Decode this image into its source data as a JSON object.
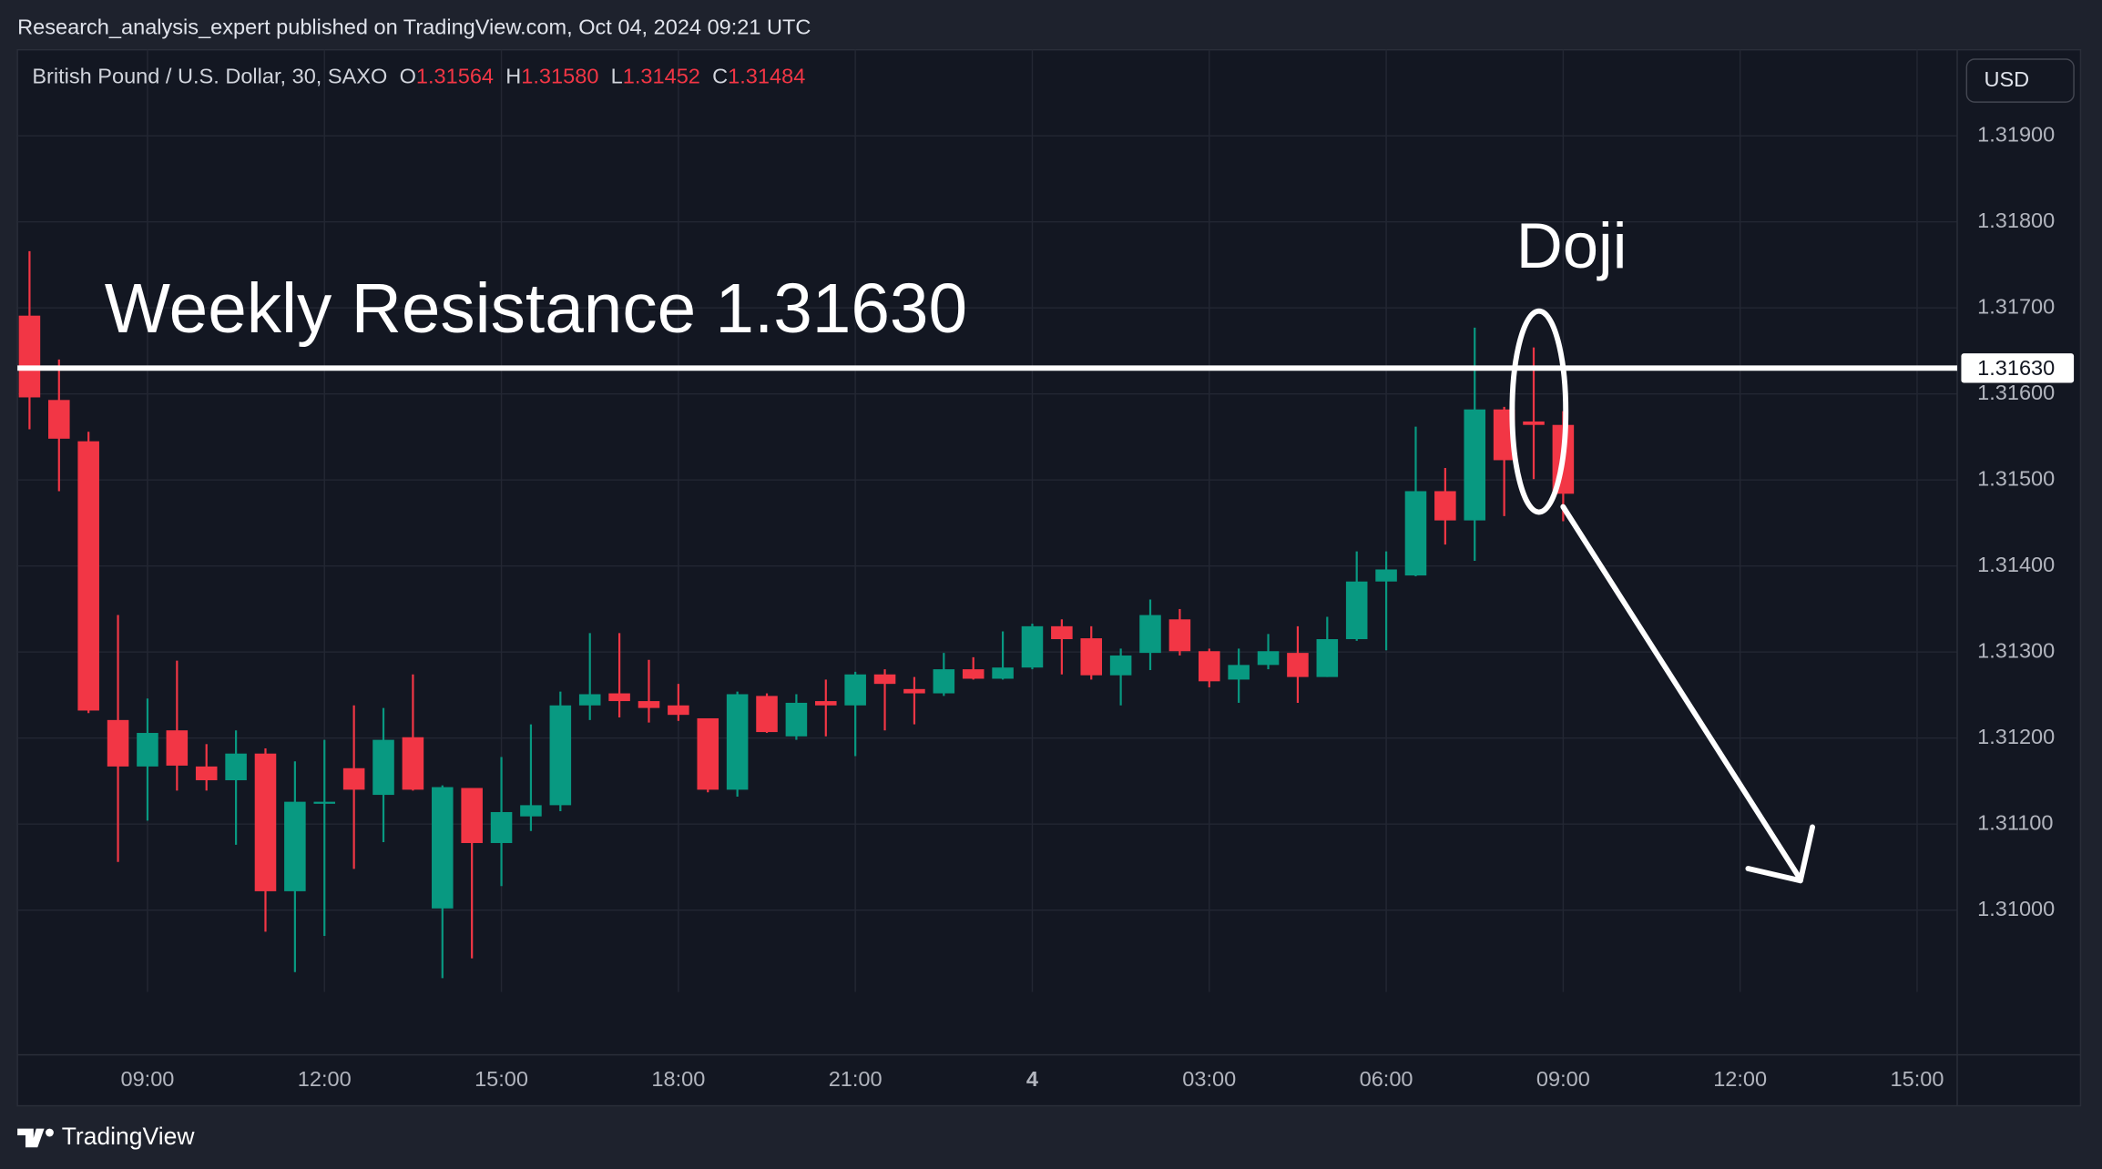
{
  "header": {
    "publisher": "Research_analysis_expert published on TradingView.com, Oct 04, 2024 09:21 UTC",
    "brand": "TradingView"
  },
  "chart_data": {
    "type": "candlestick",
    "legend": {
      "symbol": "British Pound / U.S. Dollar, 30, SAXO",
      "o": "O",
      "open": "1.31564",
      "h": "H",
      "high": "1.31580",
      "l": "L",
      "low": "1.31452",
      "c": "C",
      "close": "1.31484"
    },
    "currency": "USD",
    "up_color": "#089981",
    "down_color": "#f23645",
    "grid": true,
    "categories": [
      null,
      null,
      null,
      null,
      null,
      null,
      null,
      null,
      null,
      null,
      null,
      null,
      null,
      null,
      null,
      null,
      null,
      null,
      null,
      null,
      null,
      null,
      null,
      null,
      null,
      null,
      null,
      null,
      null,
      null,
      null,
      null,
      null,
      null,
      null,
      null,
      null,
      null,
      null,
      null,
      null,
      null,
      null,
      null,
      null,
      null,
      null,
      null,
      null,
      null,
      null,
      null,
      null
    ],
    "open": [
      1.31691,
      1.31593,
      1.31545,
      1.31221,
      1.31167,
      1.31209,
      1.31167,
      1.31151,
      1.31182,
      1.31022,
      1.31125,
      1.31165,
      1.31134,
      1.31201,
      1.31002,
      1.31142,
      1.31078,
      1.31109,
      1.31122,
      1.31238,
      1.31252,
      1.31243,
      1.31238,
      1.31223,
      1.3114,
      1.31249,
      1.31202,
      1.31243,
      1.31238,
      1.31274,
      1.31257,
      1.31252,
      1.3128,
      1.31269,
      1.31282,
      1.3133,
      1.31316,
      1.31273,
      1.31299,
      1.31338,
      1.31301,
      1.31268,
      1.31285,
      1.31299,
      1.31271,
      1.31315,
      1.31382,
      1.31389,
      1.31487,
      1.31453,
      1.31582,
      1.31568,
      1.31564
    ],
    "high": [
      1.31766,
      1.3164,
      1.31556,
      1.31343,
      1.31246,
      1.3129,
      1.31193,
      1.31209,
      1.31188,
      1.31173,
      1.31198,
      1.31238,
      1.31235,
      1.31274,
      1.31145,
      1.31142,
      1.31178,
      1.31216,
      1.31254,
      1.31322,
      1.31322,
      1.31291,
      1.31263,
      1.31223,
      1.31254,
      1.31252,
      1.31251,
      1.31268,
      1.31277,
      1.3128,
      1.31271,
      1.31299,
      1.31294,
      1.31324,
      1.31333,
      1.31338,
      1.3133,
      1.31304,
      1.31361,
      1.3135,
      1.31304,
      1.31304,
      1.31321,
      1.3133,
      1.31341,
      1.31417,
      1.31417,
      1.31562,
      1.31514,
      1.31677,
      1.31585,
      1.31654,
      1.3158
    ],
    "low": [
      1.31559,
      1.31487,
      1.31229,
      1.31056,
      1.31104,
      1.31139,
      1.31139,
      1.31076,
      1.30975,
      1.30928,
      1.3097,
      1.31048,
      1.31079,
      1.31139,
      1.30921,
      1.30944,
      1.31028,
      1.31092,
      1.31115,
      1.31221,
      1.31224,
      1.31218,
      1.3122,
      1.31137,
      1.31132,
      1.31206,
      1.31198,
      1.31202,
      1.31179,
      1.31209,
      1.31216,
      1.31249,
      1.31268,
      1.31268,
      1.3128,
      1.31274,
      1.31268,
      1.31238,
      1.31279,
      1.31296,
      1.31259,
      1.31241,
      1.3128,
      1.31241,
      1.31271,
      1.31313,
      1.31302,
      1.31388,
      1.31425,
      1.31406,
      1.31458,
      1.31501,
      1.31452
    ],
    "close": [
      1.31596,
      1.31548,
      1.31232,
      1.31167,
      1.31206,
      1.31168,
      1.31151,
      1.31182,
      1.31022,
      1.31126,
      1.31126,
      1.3114,
      1.31198,
      1.3114,
      1.31143,
      1.31078,
      1.31114,
      1.31122,
      1.31238,
      1.31251,
      1.31243,
      1.31235,
      1.31227,
      1.3114,
      1.31251,
      1.31207,
      1.31241,
      1.31238,
      1.31274,
      1.31263,
      1.31252,
      1.3128,
      1.31269,
      1.31282,
      1.3133,
      1.31315,
      1.31273,
      1.31296,
      1.31343,
      1.31301,
      1.31266,
      1.31285,
      1.31301,
      1.31271,
      1.31315,
      1.31382,
      1.31396,
      1.31487,
      1.31453,
      1.31582,
      1.31523,
      1.31564,
      1.31484
    ],
    "xlim": [
      -0.41,
      65.36
    ],
    "xticks": [
      {
        "value": 4,
        "label": "09:00"
      },
      {
        "value": 10,
        "label": "12:00"
      },
      {
        "value": 16,
        "label": "15:00"
      },
      {
        "value": 22,
        "label": "18:00"
      },
      {
        "value": 28,
        "label": "21:00"
      },
      {
        "value": 34,
        "label": "4"
      },
      {
        "value": 40,
        "label": "03:00"
      },
      {
        "value": 46,
        "label": "06:00"
      },
      {
        "value": 52,
        "label": "09:00"
      },
      {
        "value": 58,
        "label": "12:00"
      },
      {
        "value": 64,
        "label": "15:00"
      }
    ],
    "ylim": [
      1.30905,
      1.32
    ],
    "yticks": [
      {
        "value": 1.319,
        "label": "1.31900"
      },
      {
        "value": 1.318,
        "label": "1.31800"
      },
      {
        "value": 1.317,
        "label": "1.31700"
      },
      {
        "value": 1.316,
        "label": "1.31600"
      },
      {
        "value": 1.315,
        "label": "1.31500"
      },
      {
        "value": 1.314,
        "label": "1.31400"
      },
      {
        "value": 1.313,
        "label": "1.31300"
      },
      {
        "value": 1.312,
        "label": "1.31200"
      },
      {
        "value": 1.311,
        "label": "1.31100"
      },
      {
        "value": 1.31,
        "label": "1.31000"
      }
    ],
    "resistance": {
      "value": 1.3163,
      "label": "1.31630",
      "text": "Weekly Resistance 1.31630"
    },
    "annotation": "Doji"
  }
}
